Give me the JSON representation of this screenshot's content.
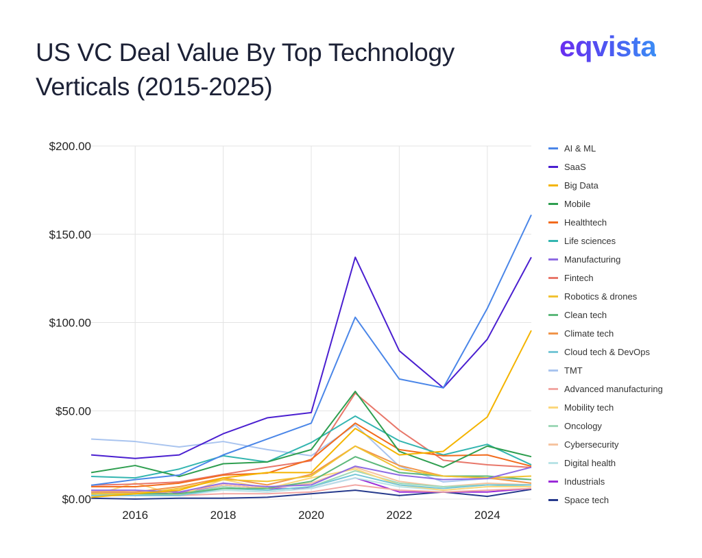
{
  "title": "US VC Deal Value By Top Technology Verticals (2015-2025)",
  "logo_text": "eqvista",
  "chart_data": {
    "type": "line",
    "title": "US VC Deal Value By Top Technology Verticals (2015-2025)",
    "x": [
      2015,
      2016,
      2017,
      2018,
      2019,
      2020,
      2021,
      2022,
      2023,
      2024,
      2025
    ],
    "xticks": [
      "2016",
      "2018",
      "2020",
      "2022",
      "2024"
    ],
    "yticks": [
      "$0.00",
      "$50.00",
      "$100.00",
      "$150.00",
      "$200.00"
    ],
    "ylim": [
      0,
      200
    ],
    "xlim": [
      2015,
      2025
    ],
    "grid": true,
    "legend_position": "right",
    "series": [
      {
        "name": "AI & ML",
        "color": "#4a86e8",
        "values": [
          7.8,
          11,
          13.6,
          25,
          34,
          43,
          103,
          68,
          63,
          108,
          161
        ]
      },
      {
        "name": "SaaS",
        "color": "#4a1fd0",
        "values": [
          25,
          23,
          25,
          37,
          46,
          49,
          137,
          84,
          63,
          90.5,
          137
        ]
      },
      {
        "name": "Big Data",
        "color": "#f4b400",
        "values": [
          1,
          3,
          5,
          12,
          15,
          15,
          40,
          25,
          27,
          46.5,
          95.5
        ]
      },
      {
        "name": "Mobile",
        "color": "#2e9e4f",
        "values": [
          15,
          19,
          12.8,
          20,
          21,
          28,
          61,
          27,
          18,
          30,
          24
        ]
      },
      {
        "name": "Healthtech",
        "color": "#f26b1d",
        "values": [
          7,
          7,
          9,
          13.6,
          14.7,
          22.5,
          43,
          28,
          24.5,
          25,
          18.6
        ]
      },
      {
        "name": "Life sciences",
        "color": "#33b5b0",
        "values": [
          12.8,
          12,
          17,
          24.5,
          21,
          32,
          47,
          33,
          25,
          31,
          19.4
        ]
      },
      {
        "name": "Manufacturing",
        "color": "#8e6be3",
        "values": [
          5,
          5,
          4,
          9,
          7,
          8,
          18.6,
          13.6,
          11,
          11.6,
          18
        ]
      },
      {
        "name": "Fintech",
        "color": "#e8776a",
        "values": [
          7.8,
          8.5,
          9.7,
          14,
          18,
          21.7,
          60,
          39,
          22,
          19.4,
          17.9
        ]
      },
      {
        "name": "Robotics & drones",
        "color": "#f1c232",
        "values": [
          3,
          3,
          6,
          11,
          10,
          13,
          30,
          17,
          13,
          12,
          13
        ]
      },
      {
        "name": "Clean tech",
        "color": "#5cb87a",
        "values": [
          3,
          3,
          3,
          6,
          6,
          10,
          24,
          15,
          13,
          13,
          11
        ]
      },
      {
        "name": "Climate tech",
        "color": "#f0954a",
        "values": [
          4,
          4,
          7,
          12,
          8,
          14,
          30,
          19,
          13,
          12,
          9
        ]
      },
      {
        "name": "Cloud tech & DevOps",
        "color": "#76c7d6",
        "values": [
          2,
          2,
          2,
          6,
          5,
          7,
          14,
          8,
          6,
          8,
          8
        ]
      },
      {
        "name": "TMT",
        "color": "#a9c4ef",
        "values": [
          34,
          32.6,
          29.5,
          32.6,
          28,
          24.5,
          42,
          18.6,
          9.7,
          11.6,
          11
        ]
      },
      {
        "name": "Advanced manufacturing",
        "color": "#f2a7a3",
        "values": [
          2,
          2,
          2,
          3,
          3,
          4,
          8,
          5,
          4,
          5,
          6
        ]
      },
      {
        "name": "Mobility tech",
        "color": "#fbd77c",
        "values": [
          2,
          9,
          2,
          11,
          6,
          12,
          17,
          8,
          5,
          7,
          7
        ]
      },
      {
        "name": "Oncology",
        "color": "#9fd8b8",
        "values": [
          3,
          2,
          3,
          7,
          5,
          7,
          16,
          9,
          7,
          8,
          7
        ]
      },
      {
        "name": "Cybersecurity",
        "color": "#f6c4a0",
        "values": [
          5,
          4,
          4,
          8,
          6,
          9,
          18,
          10,
          7,
          9,
          8
        ]
      },
      {
        "name": "Digital health",
        "color": "#b9e3e6",
        "values": [
          3,
          3,
          2,
          5,
          4,
          6,
          12,
          7,
          5,
          7,
          7
        ]
      },
      {
        "name": "Industrials",
        "color": "#9b2bd8",
        "values": [
          4,
          4,
          3.5,
          8,
          6,
          6,
          12,
          4,
          4,
          4,
          6
        ]
      },
      {
        "name": "Space tech",
        "color": "#263a8c",
        "values": [
          0.5,
          0,
          0.5,
          0.5,
          1,
          3,
          5,
          2,
          4,
          1.5,
          5.5
        ]
      }
    ]
  }
}
